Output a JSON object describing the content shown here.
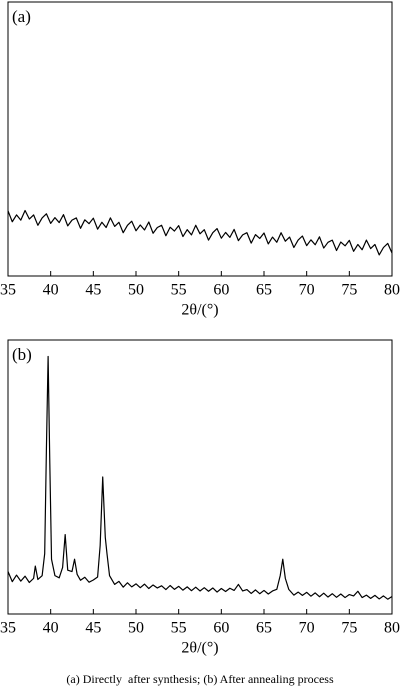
{
  "chart_data": [
    {
      "type": "line",
      "panel_label": "(a)",
      "xlabel": "2θ/(°)",
      "color": "#000000",
      "xlim": [
        35,
        80
      ],
      "xticks": [
        35,
        40,
        45,
        50,
        55,
        60,
        65,
        70,
        75,
        80
      ],
      "ylim": [
        0,
        100
      ],
      "x": [
        35,
        35.5,
        36,
        36.5,
        37,
        37.5,
        38,
        38.5,
        39,
        39.5,
        40,
        40.5,
        41,
        41.5,
        42,
        42.5,
        43,
        43.5,
        44,
        44.5,
        45,
        45.5,
        46,
        46.5,
        47,
        47.5,
        48,
        48.5,
        49,
        49.5,
        50,
        50.5,
        51,
        51.5,
        52,
        52.5,
        53,
        53.5,
        54,
        54.5,
        55,
        55.5,
        56,
        56.5,
        57,
        57.5,
        58,
        58.5,
        59,
        59.5,
        60,
        60.5,
        61,
        61.5,
        62,
        62.5,
        63,
        63.5,
        64,
        64.5,
        65,
        65.5,
        66,
        66.5,
        67,
        67.5,
        68,
        68.5,
        69,
        69.5,
        70,
        70.5,
        71,
        71.5,
        72,
        72.5,
        73,
        73.5,
        74,
        74.5,
        75,
        75.5,
        76,
        76.5,
        77,
        77.5,
        78,
        78.5,
        79,
        79.5,
        80
      ],
      "values": [
        23.8,
        19.8,
        22.3,
        20.4,
        23.9,
        20.8,
        22.3,
        18.5,
        21.2,
        22.7,
        19.2,
        21.3,
        19.5,
        22.4,
        18.3,
        20.4,
        21.2,
        17.4,
        20.5,
        19.1,
        21.1,
        17.1,
        19.6,
        17.7,
        21.2,
        18.1,
        19.6,
        15.8,
        18.5,
        20.0,
        16.5,
        18.6,
        16.8,
        19.7,
        15.6,
        17.7,
        18.5,
        14.7,
        17.8,
        16.4,
        18.4,
        14.4,
        16.9,
        15.0,
        18.5,
        15.4,
        16.9,
        13.1,
        15.8,
        17.3,
        13.8,
        15.9,
        14.1,
        17.0,
        12.9,
        15.0,
        15.8,
        12.0,
        15.1,
        13.7,
        15.7,
        11.7,
        14.2,
        12.3,
        15.8,
        12.7,
        14.2,
        10.4,
        13.1,
        14.6,
        11.1,
        13.2,
        11.4,
        14.3,
        10.2,
        12.3,
        13.1,
        9.3,
        12.4,
        11.0,
        13.0,
        9.0,
        11.5,
        9.6,
        13.1,
        10.0,
        11.5,
        7.7,
        10.4,
        11.9,
        8.4
      ]
    },
    {
      "type": "line",
      "panel_label": "(b)",
      "xlabel": "2θ/(°)",
      "color": "#000000",
      "xlim": [
        35,
        80
      ],
      "xticks": [
        35,
        40,
        45,
        50,
        55,
        60,
        65,
        70,
        75,
        80
      ],
      "ylim": [
        0,
        100
      ],
      "x": [
        35,
        35.5,
        36,
        36.5,
        37,
        37.5,
        38,
        38.2,
        38.5,
        39,
        39.3,
        39.5,
        39.7,
        39.9,
        40.1,
        40.5,
        41,
        41.4,
        41.7,
        42,
        42.5,
        42.8,
        43.1,
        43.5,
        44,
        44.5,
        45,
        45.5,
        45.8,
        46.1,
        46.4,
        46.6,
        46.9,
        47.5,
        48,
        48.5,
        49,
        49.5,
        50,
        50.5,
        51,
        51.5,
        52,
        52.5,
        53,
        53.5,
        54,
        54.5,
        55,
        55.5,
        56,
        56.5,
        57,
        57.5,
        58,
        58.5,
        59,
        59.5,
        60,
        60.5,
        61,
        61.5,
        62,
        62.5,
        63,
        63.5,
        64,
        64.5,
        65,
        65.5,
        66,
        66.5,
        66.9,
        67.2,
        67.5,
        67.9,
        68.5,
        69,
        69.5,
        70,
        70.5,
        71,
        71.5,
        72,
        72.5,
        73,
        73.5,
        74,
        74.5,
        75,
        75.5,
        76,
        76.5,
        77,
        77.5,
        78,
        78.5,
        79,
        79.5,
        80
      ],
      "values": [
        15.5,
        11.8,
        14.2,
        12.0,
        13.8,
        11.5,
        13.0,
        17.5,
        12.6,
        14.0,
        22,
        60,
        94,
        55,
        20,
        14.0,
        13.2,
        17,
        29,
        16,
        15.5,
        20,
        14.5,
        12.3,
        13.4,
        11.6,
        12.4,
        13.5,
        25,
        50,
        28,
        22,
        14,
        10.8,
        11.9,
        9.8,
        11.4,
        9.9,
        11.0,
        9.6,
        10.9,
        9.3,
        10.6,
        9.5,
        10.3,
        8.9,
        10.4,
        9.0,
        10.1,
        8.7,
        9.9,
        8.5,
        9.8,
        8.4,
        9.6,
        8.3,
        9.5,
        8.0,
        9.3,
        8.2,
        9.4,
        8.6,
        10.8,
        8.4,
        8.9,
        7.5,
        8.8,
        7.4,
        8.6,
        7.3,
        8.4,
        9.0,
        14,
        20,
        13,
        9,
        6.9,
        8.0,
        6.8,
        7.9,
        6.5,
        7.7,
        6.3,
        7.6,
        6.2,
        7.4,
        6.1,
        7.3,
        6.0,
        7.1,
        6.6,
        8.3,
        6.0,
        6.9,
        5.7,
        6.8,
        5.5,
        6.6,
        5.4,
        6.4
      ]
    }
  ],
  "caption": "(a) Directly  after synthesis; (b) After annealing process"
}
